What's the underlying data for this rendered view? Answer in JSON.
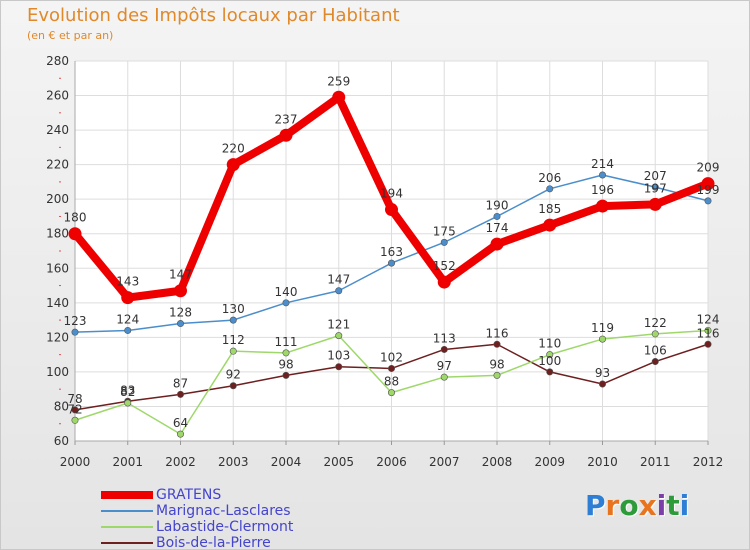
{
  "title": "Evolution des Impôts locaux par Habitant",
  "subtitle": "(en € et par an)",
  "logo_text": "Proxiti",
  "chart_data": {
    "type": "line",
    "title": "Evolution des Impôts locaux par Habitant",
    "subtitle": "(en € et par an)",
    "xlabel": "",
    "ylabel": "",
    "x": [
      "2000",
      "2001",
      "2002",
      "2003",
      "2004",
      "2005",
      "2006",
      "2007",
      "2008",
      "2009",
      "2010",
      "2011",
      "2012"
    ],
    "ylim": [
      60,
      280
    ],
    "yticks": [
      60,
      80,
      100,
      120,
      140,
      160,
      180,
      200,
      220,
      240,
      260,
      280
    ],
    "grid": true,
    "legend_position": "bottom-left",
    "series": [
      {
        "name": "GRATENS",
        "color": "#ee0000",
        "values": [
          180,
          143,
          147,
          220,
          237,
          259,
          194,
          152,
          174,
          185,
          196,
          197,
          209
        ]
      },
      {
        "name": "Marignac-Lasclares",
        "color": "#4b8ecb",
        "values": [
          123,
          124,
          128,
          130,
          140,
          147,
          163,
          175,
          190,
          206,
          214,
          207,
          199
        ]
      },
      {
        "name": "Labastide-Clermont",
        "color": "#9ed86a",
        "values": [
          72,
          82,
          64,
          112,
          111,
          121,
          88,
          97,
          98,
          110,
          119,
          122,
          124
        ]
      },
      {
        "name": "Bois-de-la-Pierre",
        "color": "#6e1f1f",
        "values": [
          78,
          83,
          87,
          92,
          98,
          103,
          102,
          113,
          116,
          100,
          93,
          106,
          116
        ]
      }
    ]
  }
}
